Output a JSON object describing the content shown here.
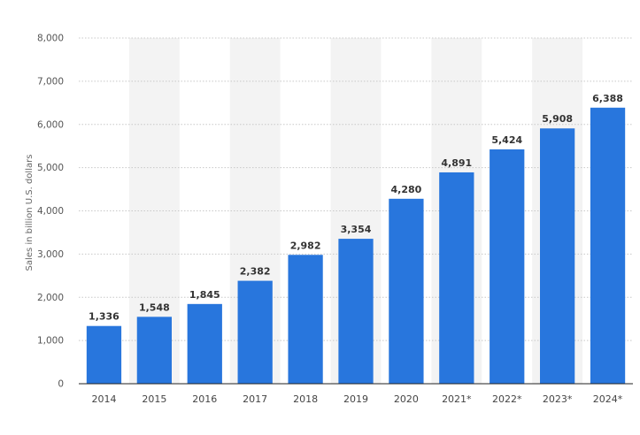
{
  "chart_data": {
    "type": "bar",
    "title": "",
    "xlabel": "",
    "ylabel": "Sales in billion U.S. dollars",
    "categories": [
      "2014",
      "2015",
      "2016",
      "2017",
      "2018",
      "2019",
      "2020",
      "2021*",
      "2022*",
      "2023*",
      "2024*"
    ],
    "values": [
      1336,
      1548,
      1845,
      2382,
      2982,
      3354,
      4280,
      4891,
      5424,
      5908,
      6388
    ],
    "value_labels": [
      "1,336",
      "1,548",
      "1,845",
      "2,382",
      "2,982",
      "3,354",
      "4,280",
      "4,891",
      "5,424",
      "5,908",
      "6,388"
    ],
    "ylim": [
      0,
      8000
    ],
    "yticks": [
      0,
      1000,
      2000,
      3000,
      4000,
      5000,
      6000,
      7000,
      8000
    ],
    "ytick_labels": [
      "0",
      "1,000",
      "2,000",
      "3,000",
      "4,000",
      "5,000",
      "6,000",
      "7,000",
      "8,000"
    ],
    "grid": true,
    "legend": "none",
    "colors": {
      "bar": "#2876dd",
      "band": "#f3f3f3",
      "grid": "#c8c8c8",
      "baseline": "#222222"
    }
  }
}
